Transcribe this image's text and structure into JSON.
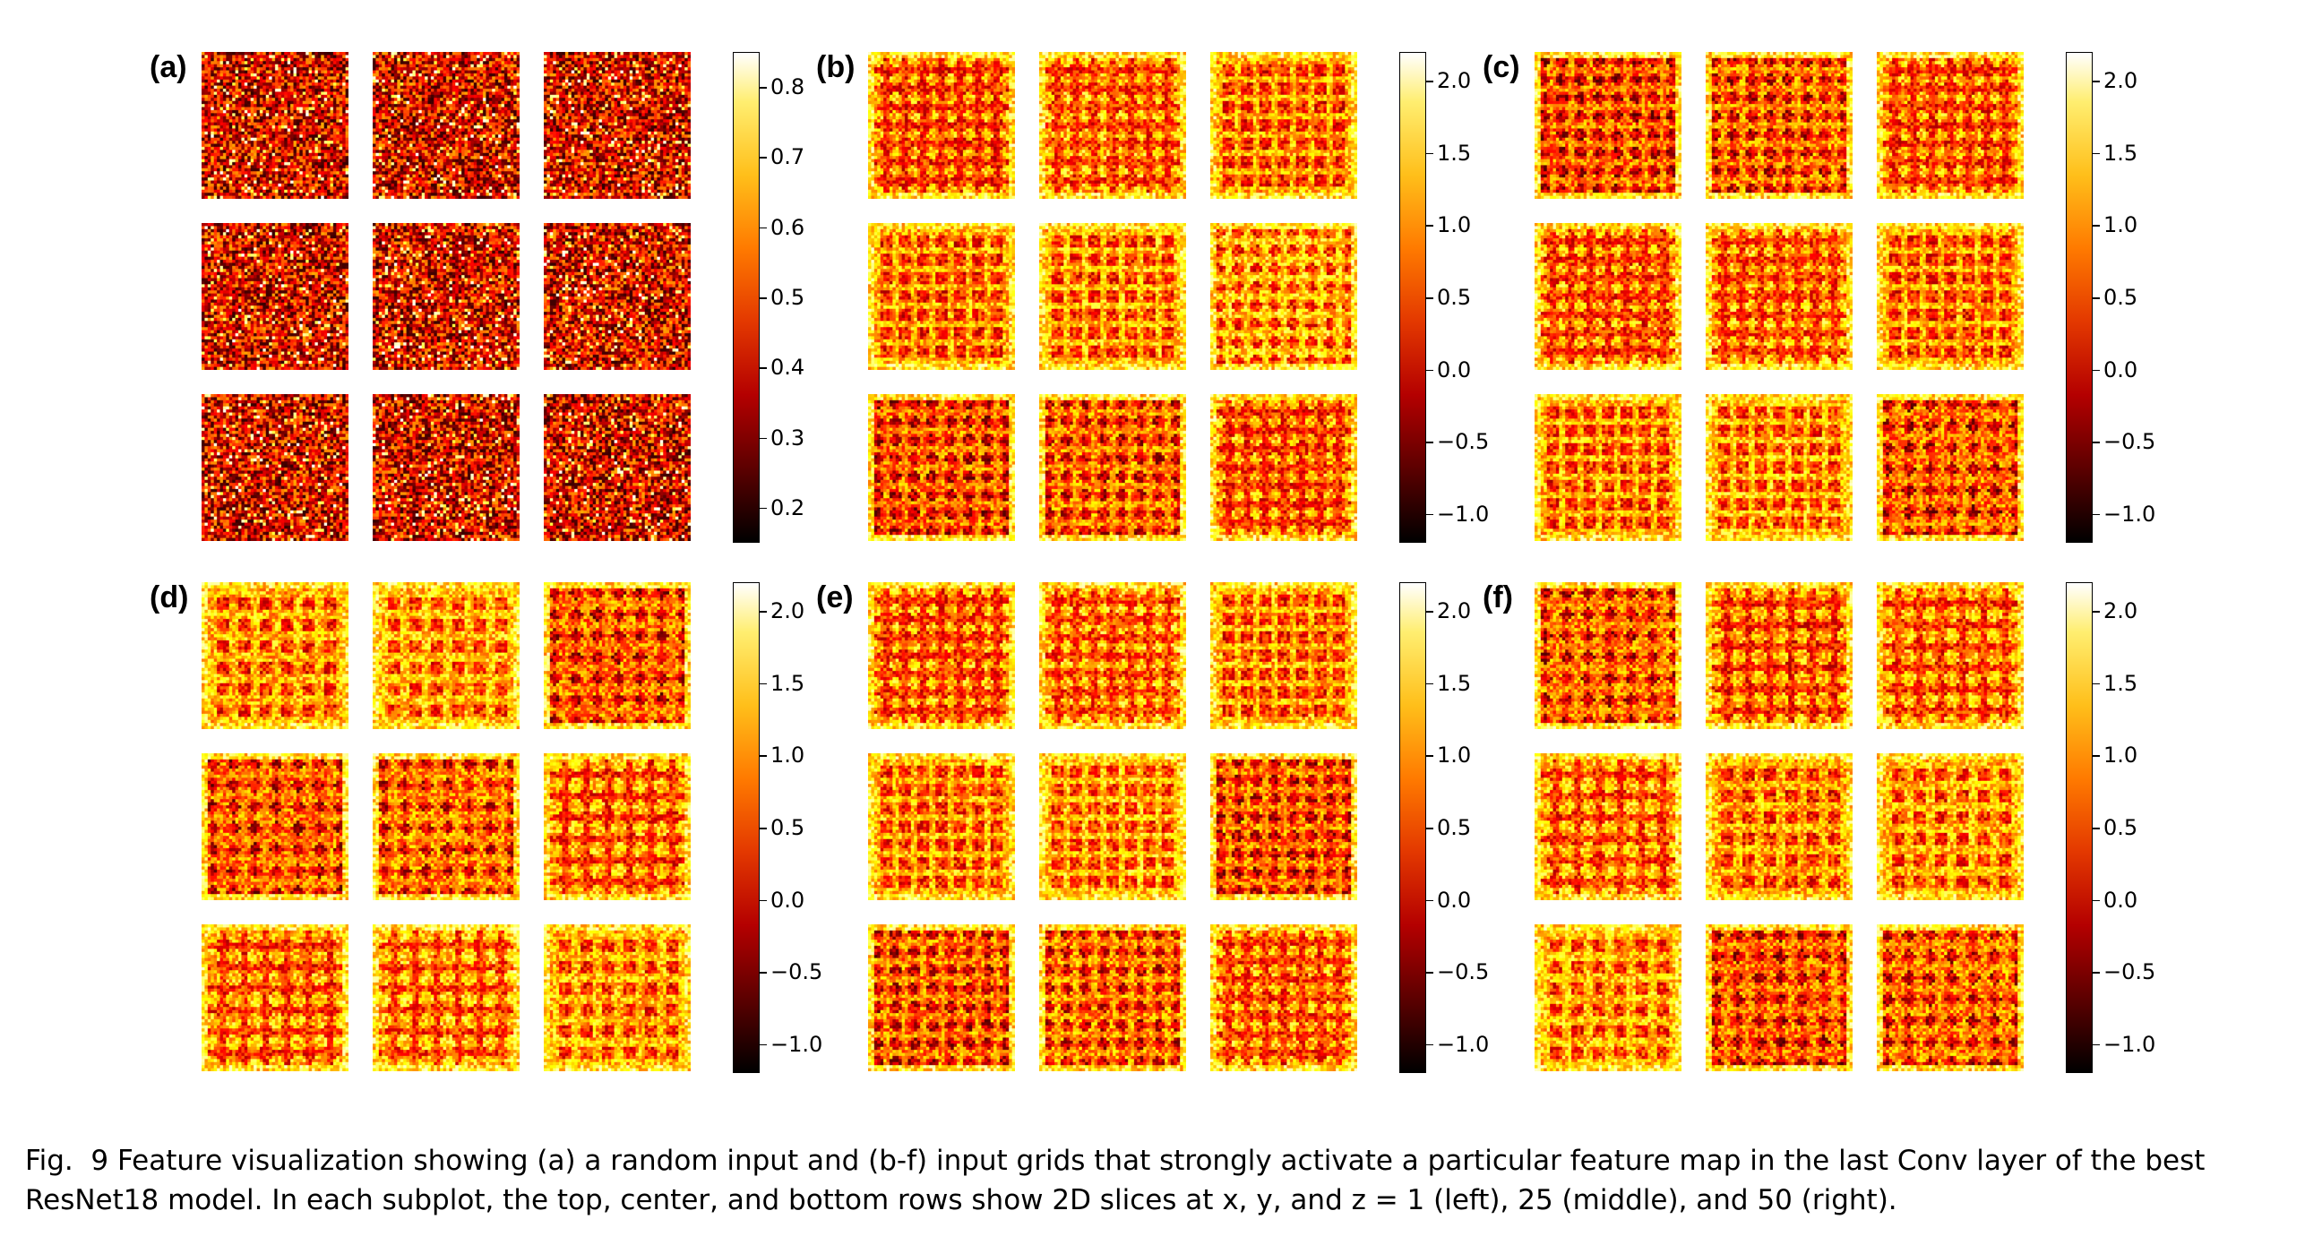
{
  "figure": {
    "panels": [
      {
        "label": "(a)",
        "kind": "random",
        "ticks": [
          "0.8",
          "0.7",
          "0.6",
          "0.5",
          "0.4",
          "0.3",
          "0.2"
        ],
        "range": [
          0.15,
          0.85
        ],
        "tick_values": [
          0.8,
          0.7,
          0.6,
          0.5,
          0.4,
          0.3,
          0.2
        ]
      },
      {
        "label": "(b)",
        "kind": "grid",
        "ticks": [
          "2.0",
          "1.5",
          "1.0",
          "0.5",
          "0.0",
          "−0.5",
          "−1.0"
        ],
        "range": [
          -1.2,
          2.2
        ],
        "tick_values": [
          2.0,
          1.5,
          1.0,
          0.5,
          0.0,
          -0.5,
          -1.0
        ]
      },
      {
        "label": "(c)",
        "kind": "grid",
        "ticks": [
          "2.0",
          "1.5",
          "1.0",
          "0.5",
          "0.0",
          "−0.5",
          "−1.0"
        ],
        "range": [
          -1.2,
          2.2
        ],
        "tick_values": [
          2.0,
          1.5,
          1.0,
          0.5,
          0.0,
          -0.5,
          -1.0
        ]
      },
      {
        "label": "(d)",
        "kind": "grid",
        "ticks": [
          "2.0",
          "1.5",
          "1.0",
          "0.5",
          "0.0",
          "−0.5",
          "−1.0"
        ],
        "range": [
          -1.2,
          2.2
        ],
        "tick_values": [
          2.0,
          1.5,
          1.0,
          0.5,
          0.0,
          -0.5,
          -1.0
        ]
      },
      {
        "label": "(e)",
        "kind": "grid",
        "ticks": [
          "2.0",
          "1.5",
          "1.0",
          "0.5",
          "0.0",
          "−0.5",
          "−1.0"
        ],
        "range": [
          -1.2,
          2.2
        ],
        "tick_values": [
          2.0,
          1.5,
          1.0,
          0.5,
          0.0,
          -0.5,
          -1.0
        ]
      },
      {
        "label": "(f)",
        "kind": "grid",
        "ticks": [
          "2.0",
          "1.5",
          "1.0",
          "0.5",
          "0.0",
          "−0.5",
          "−1.0"
        ],
        "range": [
          -1.2,
          2.2
        ],
        "tick_values": [
          2.0,
          1.5,
          1.0,
          0.5,
          0.0,
          -0.5,
          -1.0
        ]
      }
    ],
    "colormap": "hot"
  },
  "caption": {
    "text": "Fig.  9 Feature visualization showing (a) a random input and (b-f) input grids that strongly activate a particular feature map in the last Conv layer of the best ResNet18 model. In each subplot, the top, center, and bottom rows show 2D slices at x, y, and z = 1 (left), 25 (middle), and 50 (right)."
  }
}
